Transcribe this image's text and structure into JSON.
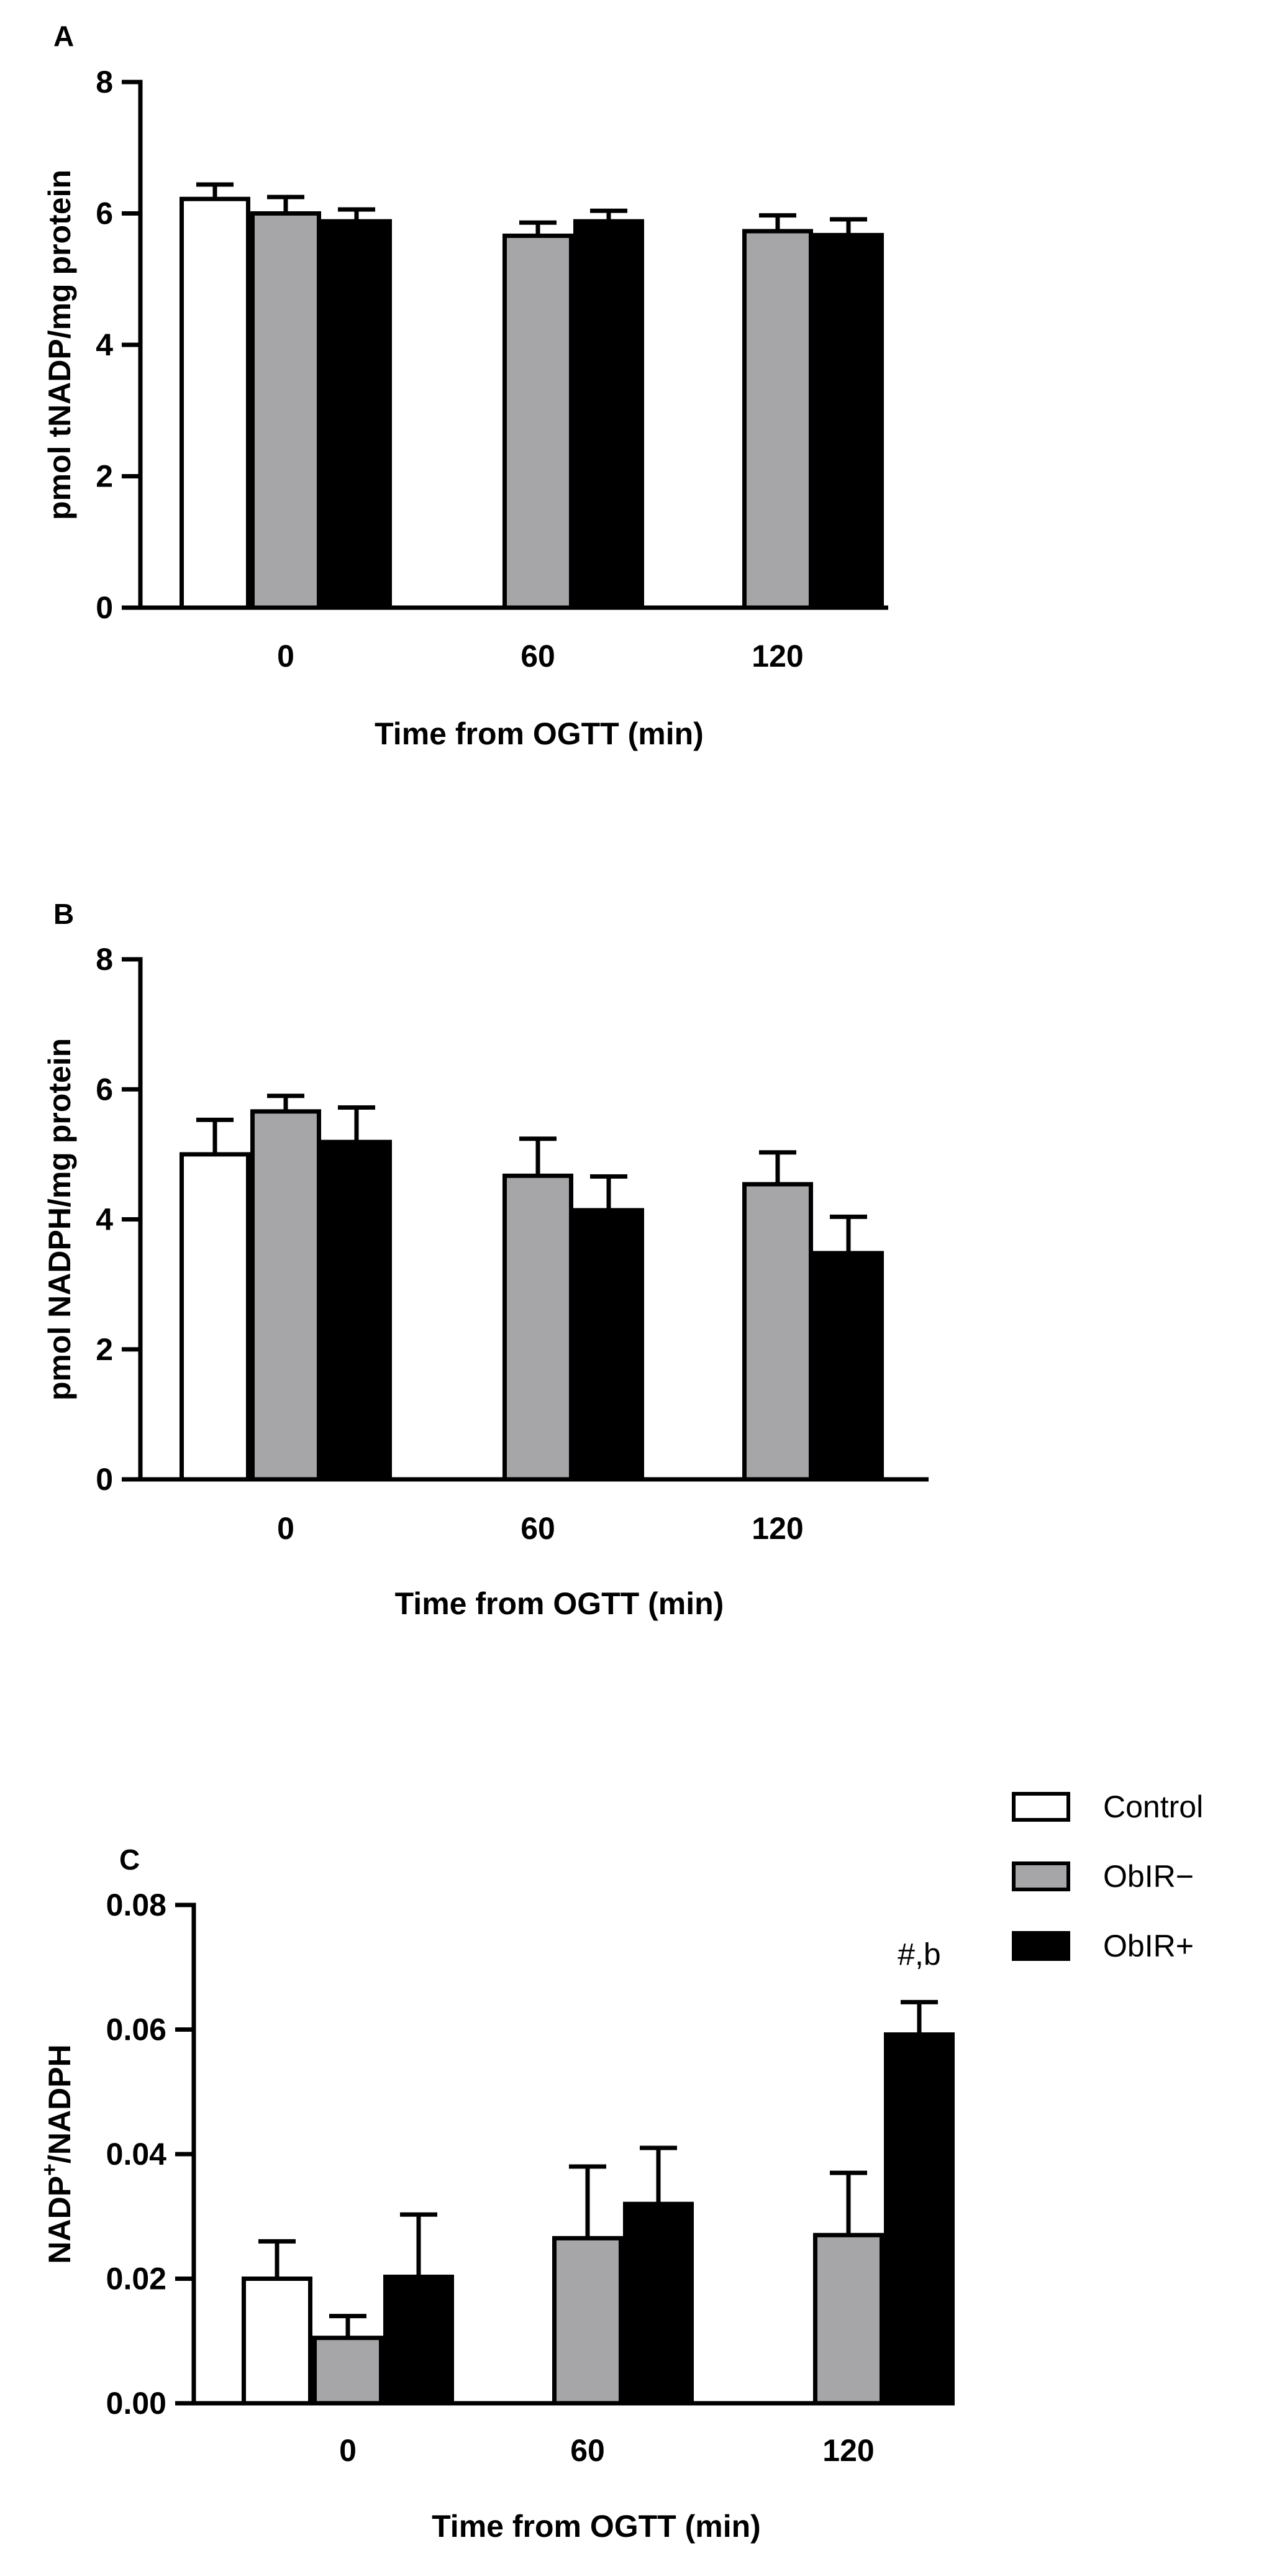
{
  "legend": {
    "items": [
      {
        "name": "Control",
        "color": "#ffffff"
      },
      {
        "name": "ObIR−",
        "color": "#a6a6a8"
      },
      {
        "name": "ObIR+",
        "color": "#000000"
      }
    ]
  },
  "chart_data": [
    {
      "type": "bar",
      "panel_label": "A",
      "title": "",
      "xlabel": "Time from OGTT (min)",
      "ylabel": "pmol tNADP/mg protein",
      "ylim": [
        0,
        8
      ],
      "yticks": [
        "0",
        "2",
        "4",
        "6",
        "8"
      ],
      "categories": [
        "0",
        "60",
        "120"
      ],
      "series": [
        {
          "name": "Control",
          "values": [
            6.22,
            null,
            null
          ],
          "errors": [
            0.22,
            null,
            null
          ]
        },
        {
          "name": "ObIR−",
          "values": [
            6.0,
            5.66,
            5.73
          ],
          "errors": [
            0.25,
            0.2,
            0.24
          ]
        },
        {
          "name": "ObIR+",
          "values": [
            5.88,
            5.88,
            5.67
          ],
          "errors": [
            0.18,
            0.16,
            0.24
          ]
        }
      ],
      "annotations": []
    },
    {
      "type": "bar",
      "panel_label": "B",
      "title": "",
      "xlabel": "Time from OGTT (min)",
      "ylabel": "pmol NADPH/mg protein",
      "ylim": [
        0,
        8
      ],
      "yticks": [
        "0",
        "2",
        "4",
        "6",
        "8"
      ],
      "categories": [
        "0",
        "60",
        "120"
      ],
      "series": [
        {
          "name": "Control",
          "values": [
            5.0,
            null,
            null
          ],
          "errors": [
            0.53,
            null,
            null
          ]
        },
        {
          "name": "ObIR−",
          "values": [
            5.66,
            4.67,
            4.54
          ],
          "errors": [
            0.24,
            0.57,
            0.49
          ]
        },
        {
          "name": "ObIR+",
          "values": [
            5.19,
            4.14,
            3.48
          ],
          "errors": [
            0.53,
            0.52,
            0.56
          ]
        }
      ],
      "annotations": []
    },
    {
      "type": "bar",
      "panel_label": "C",
      "title": "",
      "xlabel": "Time from OGTT (min)",
      "ylabel": "NADP+/NADPH",
      "ylim": [
        0,
        0.08
      ],
      "yticks": [
        "0.00",
        "0.02",
        "0.04",
        "0.06",
        "0.08"
      ],
      "categories": [
        "0",
        "60",
        "120"
      ],
      "series": [
        {
          "name": "Control",
          "values": [
            0.02,
            null,
            null
          ],
          "errors": [
            0.006,
            null,
            null
          ]
        },
        {
          "name": "ObIR−",
          "values": [
            0.0105,
            0.0265,
            0.027
          ],
          "errors": [
            0.0035,
            0.0115,
            0.01
          ]
        },
        {
          "name": "ObIR+",
          "values": [
            0.0203,
            0.032,
            0.0592
          ],
          "errors": [
            0.01,
            0.009,
            0.0052
          ]
        }
      ],
      "annotations": [
        {
          "text": "#,b",
          "category": "120",
          "series": "ObIR+"
        }
      ]
    }
  ]
}
